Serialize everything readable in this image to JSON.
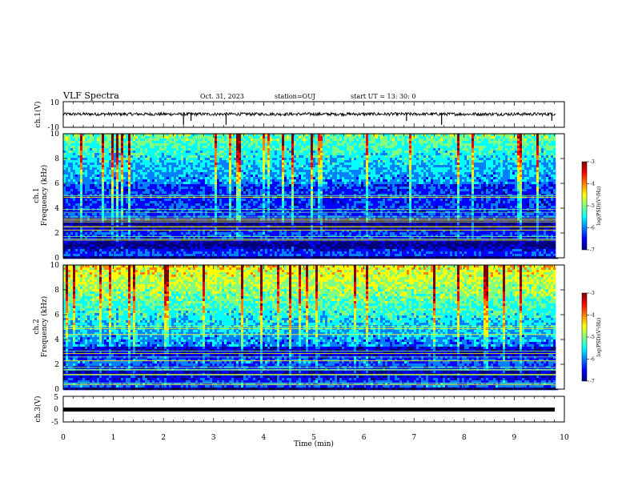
{
  "header": {
    "title": "VLF Spectra",
    "date": "Oct. 31, 2023",
    "station": "station=OUJ",
    "start": "start  UT =  13: 30: 0"
  },
  "chart_data": [
    {
      "type": "line",
      "name": "ch1-waveform",
      "ylabel": "ch.1(V)",
      "ylim": [
        -10,
        10
      ],
      "yticks": [
        "10",
        "-10"
      ],
      "xlim": [
        0,
        10
      ],
      "description_level": 0.3,
      "spikes": [
        2.4,
        2.55,
        3.25,
        6.85,
        7.55,
        9.75
      ]
    },
    {
      "type": "heatmap",
      "name": "ch1-spectrogram",
      "ylabel_top": "ch.1",
      "ylabel": "Frequency (kHz)",
      "ylim": [
        0,
        10
      ],
      "yticks": [
        "0",
        "2",
        "4",
        "6",
        "8",
        "10"
      ],
      "xlim": [
        0,
        10
      ],
      "data_end_min": 9.83,
      "colorbar": {
        "label": "log(PSD)(V²/Hz)",
        "ticks": [
          "-3",
          "-4",
          "-5",
          "-6",
          "-7"
        ],
        "range": [
          -7,
          -3
        ]
      }
    },
    {
      "type": "heatmap",
      "name": "ch2-spectrogram",
      "ylabel_top": "ch.2",
      "ylabel": "Frequency (kHz)",
      "ylim": [
        0,
        10
      ],
      "yticks": [
        "0",
        "2",
        "4",
        "6",
        "8",
        "10"
      ],
      "xlim": [
        0,
        10
      ],
      "data_end_min": 9.83,
      "colorbar": {
        "label": "log(PSD)(V²/Hz)",
        "ticks": [
          "-3",
          "-4",
          "-5",
          "-6",
          "-7"
        ],
        "range": [
          -7,
          -3
        ]
      }
    },
    {
      "type": "line",
      "name": "ch3-waveform",
      "ylabel": "ch.3(V)",
      "ylim": [
        -5,
        5
      ],
      "yticks": [
        "5",
        "0",
        "-5"
      ],
      "xlim": [
        0,
        10
      ],
      "level": -0.7
    }
  ],
  "xaxis": {
    "label": "Time (min)",
    "ticks": [
      "0",
      "1",
      "2",
      "3",
      "4",
      "5",
      "6",
      "7",
      "8",
      "9",
      "10"
    ]
  },
  "colors": {
    "jet": [
      "#00007f",
      "#0000ff",
      "#0080ff",
      "#00ffff",
      "#80ff80",
      "#ffff00",
      "#ff8000",
      "#ff0000",
      "#7f0000"
    ]
  }
}
